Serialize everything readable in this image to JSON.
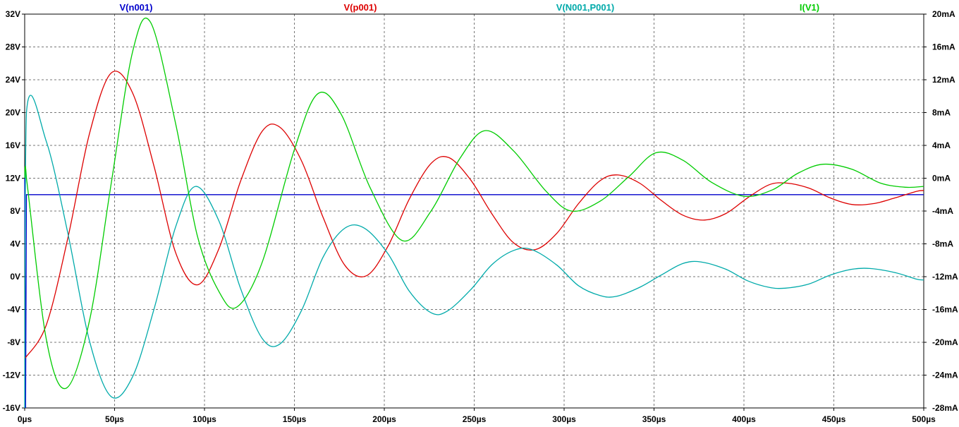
{
  "chart_data": {
    "type": "line",
    "title": "",
    "grid": true,
    "legend_placement": "top",
    "x_axis": {
      "range": [
        0,
        500
      ],
      "ticks": [
        0,
        50,
        100,
        150,
        200,
        250,
        300,
        350,
        400,
        450,
        500
      ],
      "tick_labels": [
        "0µs",
        "50µs",
        "100µs",
        "150µs",
        "200µs",
        "250µs",
        "300µs",
        "350µs",
        "400µs",
        "450µs",
        "500µs"
      ]
    },
    "y_left": {
      "range": [
        -16,
        32
      ],
      "ticks": [
        -16,
        -12,
        -8,
        -4,
        0,
        4,
        8,
        12,
        16,
        20,
        24,
        28,
        32
      ],
      "tick_labels": [
        "-16V",
        "-12V",
        "-8V",
        "-4V",
        "0V",
        "4V",
        "8V",
        "12V",
        "16V",
        "20V",
        "24V",
        "28V",
        "32V"
      ]
    },
    "y_right": {
      "range": [
        -28,
        20
      ],
      "ticks": [
        -28,
        -24,
        -20,
        -16,
        -12,
        -8,
        -4,
        0,
        4,
        8,
        12,
        16,
        20
      ],
      "tick_labels": [
        "-28mA",
        "-24mA",
        "-20mA",
        "-16mA",
        "-12mA",
        "-8mA",
        "-4mA",
        "0mA",
        "4mA",
        "8mA",
        "12mA",
        "16mA",
        "20mA"
      ]
    },
    "series": [
      {
        "name": "V(n001)",
        "color": "#0000cc",
        "axis": "left",
        "x": [
          0,
          0.5,
          1,
          500
        ],
        "y": [
          12,
          -16,
          10,
          10
        ]
      },
      {
        "name": "V(p001)",
        "color": "#dd0000",
        "axis": "left",
        "x": [
          0,
          12,
          24,
          36,
          48,
          60,
          72,
          84,
          96,
          108,
          120,
          132,
          142,
          154,
          166,
          178,
          190,
          202,
          214,
          226,
          236,
          248,
          260,
          272,
          284,
          296,
          308,
          320,
          330,
          342,
          354,
          366,
          378,
          390,
          402,
          414,
          424,
          436,
          448,
          460,
          472,
          484,
          496,
          500
        ],
        "y": [
          -10,
          -5.9,
          4.7,
          17.4,
          24.8,
          22.4,
          13.4,
          2.9,
          -1,
          3.4,
          11.6,
          17.7,
          18.2,
          14.1,
          7.2,
          1.4,
          0.1,
          3.7,
          9.5,
          13.8,
          14.5,
          11.8,
          7.6,
          4.1,
          3.3,
          5.3,
          8.9,
          11.7,
          12.4,
          11.4,
          9.3,
          7.5,
          6.9,
          7.7,
          9.6,
          11.2,
          11.4,
          10.8,
          9.6,
          8.8,
          8.9,
          9.6,
          10.4,
          10.5
        ]
      },
      {
        "name": "V(N001,P001)",
        "color": "#00aaaa",
        "axis": "left",
        "x": [
          0,
          1,
          12,
          24,
          36,
          48,
          60,
          72,
          84,
          95,
          108,
          120,
          132,
          142,
          154,
          166,
          178,
          189,
          202,
          214,
          226,
          235,
          248,
          260,
          272,
          282,
          296,
          308,
          320,
          329,
          342,
          354,
          366,
          376,
          390,
          402,
          414,
          423,
          436,
          448,
          460,
          470,
          484,
          496,
          500
        ],
        "y": [
          -16,
          20,
          16.5,
          5.3,
          -7.8,
          -14.6,
          -12.2,
          -3.9,
          6.1,
          11,
          6.8,
          -1.4,
          -7.5,
          -8.2,
          -4.1,
          2.4,
          5.9,
          5.9,
          2.8,
          -1.8,
          -4.4,
          -4.2,
          -1.6,
          1.5,
          3.2,
          3.3,
          1.4,
          -1.1,
          -2.3,
          -2.4,
          -1.3,
          0.2,
          1.6,
          1.8,
          0.9,
          -0.5,
          -1.3,
          -1.4,
          -0.9,
          0.2,
          0.9,
          1,
          0.5,
          -0.3,
          -0.4
        ]
      },
      {
        "name": "I(V1)",
        "color": "#00cc00",
        "axis": "right",
        "x": [
          0,
          1,
          12,
          23,
          36,
          48,
          60,
          70,
          84,
          96,
          108,
          118,
          132,
          150,
          163,
          176,
          192,
          210,
          226,
          242,
          256,
          272,
          290,
          304,
          320,
          336,
          351,
          366,
          382,
          400,
          416,
          430,
          444,
          460,
          476,
          490,
          500
        ],
        "y": [
          0,
          0,
          -19.6,
          -25.6,
          -17.4,
          -0.8,
          15.4,
          19,
          6.6,
          -7,
          -13.8,
          -15.7,
          -10.3,
          3.5,
          10.3,
          7.8,
          -1.1,
          -7.6,
          -4,
          2.4,
          5.8,
          3.3,
          -1.6,
          -4,
          -2.8,
          0.2,
          3.1,
          2.2,
          -0.5,
          -2.2,
          -1.4,
          0.6,
          1.7,
          1.1,
          -0.6,
          -1.1,
          -1
        ]
      }
    ]
  }
}
